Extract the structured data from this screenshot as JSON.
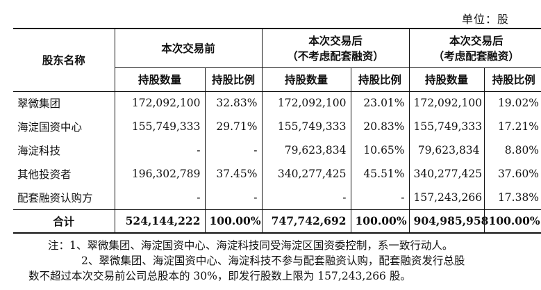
{
  "unit": "单位：股",
  "header": {
    "col_name": "股东名称",
    "groups": [
      {
        "line1": "本次交易前",
        "line2": ""
      },
      {
        "line1": "本次交易后",
        "line2": "（不考虑配套融资）"
      },
      {
        "line1": "本次交易后",
        "line2": "（考虑配套融资）"
      }
    ],
    "sub_shares": "持股数量",
    "sub_ratio": "持股比例"
  },
  "rows": [
    {
      "name": "翠微集团",
      "c": [
        "172,092,100",
        "32.83%",
        "172,092,100",
        "23.01%",
        "172,092,100",
        "19.02%"
      ]
    },
    {
      "name": "海淀国资中心",
      "c": [
        "155,749,333",
        "29.71%",
        "155,749,333",
        "20.83%",
        "155,749,333",
        "17.21%"
      ]
    },
    {
      "name": "海淀科技",
      "c": [
        "-",
        "-",
        "79,623,834",
        "10.65%",
        "79,623,834",
        "8.80%"
      ]
    },
    {
      "name": "其他投资者",
      "c": [
        "196,302,789",
        "37.45%",
        "340,277,425",
        "45.51%",
        "340,277,425",
        "37.60%"
      ]
    },
    {
      "name": "配套融资认购方",
      "c": [
        "-",
        "-",
        "-",
        "-",
        "157,243,266",
        "17.38%"
      ]
    }
  ],
  "total": {
    "name": "合计",
    "c": [
      "524,144,222",
      "100.00%",
      "747,742,692",
      "100.00%",
      "904,985,958",
      "100.00%"
    ]
  },
  "notes": {
    "line1": "注：1、翠微集团、海淀国资中心、海淀科技同受海淀区国资委控制，系一致行动人。",
    "line2": "2、翠微集团、海淀国资中心、海淀科技不参与配套融资认购，配套融资发行总股",
    "line3": "数不超过本次交易前公司总股本的 30%，即发行股数上限为 157,243,266 股。"
  }
}
